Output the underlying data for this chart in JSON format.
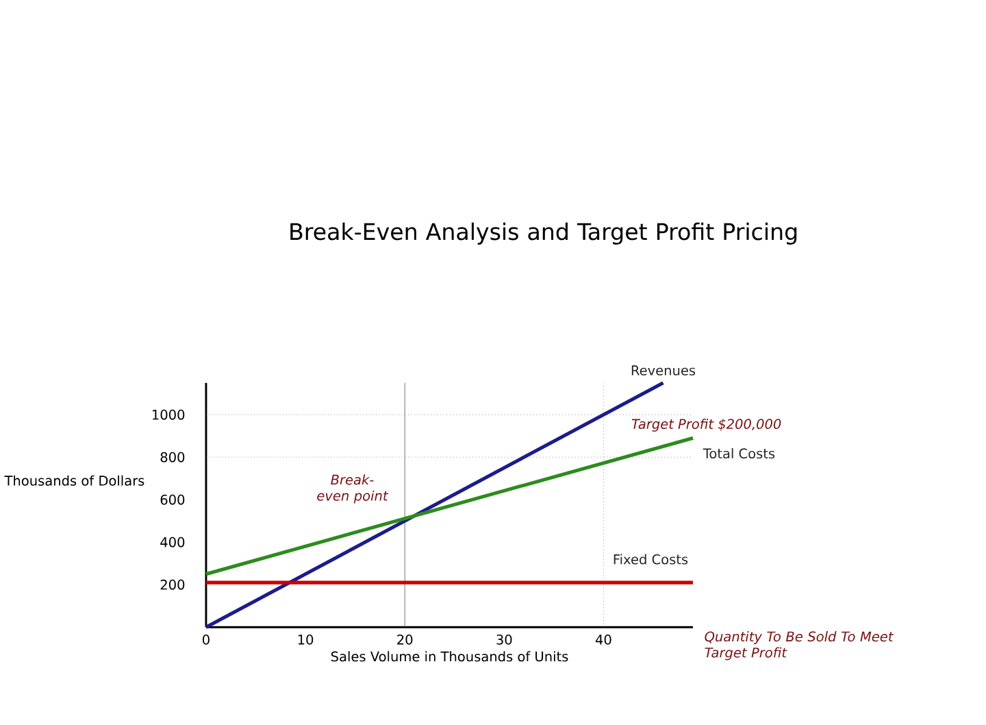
{
  "chart_data": {
    "type": "line",
    "title": "Break-Even Analysis and Target Profit Pricing",
    "xlabel": "Sales Volume in Thousands of Units",
    "ylabel": "Thousands of Dollars",
    "xlim": [
      0,
      49
    ],
    "ylim": [
      0,
      1150
    ],
    "xticks": [
      0,
      10,
      20,
      30,
      40
    ],
    "yticks": [
      200,
      400,
      600,
      800,
      1000
    ],
    "series": [
      {
        "name": "Revenues",
        "color": "#1c1c8c",
        "x": [
          0,
          46
        ],
        "values": [
          0,
          1150
        ]
      },
      {
        "name": "Total Costs",
        "color": "#2e8b1e",
        "x": [
          0,
          49
        ],
        "values": [
          250,
          890
        ]
      },
      {
        "name": "Fixed Costs",
        "color": "#cc0000",
        "x": [
          0,
          49
        ],
        "values": [
          210,
          210
        ]
      }
    ],
    "ref_lines": [
      {
        "axis": "y",
        "value": 1000,
        "line_style": "dotted"
      },
      {
        "axis": "y",
        "value": 800,
        "line_style": "dotted"
      },
      {
        "axis": "x",
        "value": 20,
        "line_style": "solid"
      },
      {
        "axis": "x",
        "value": 40,
        "line_style": "dotted"
      }
    ],
    "annotations": [
      "Target Profit $200,000",
      "Break-even point",
      "Quantity To Be Sold To Meet Target Profit"
    ],
    "grid": false,
    "legend": false,
    "marker": "none",
    "line_style": "solid"
  }
}
